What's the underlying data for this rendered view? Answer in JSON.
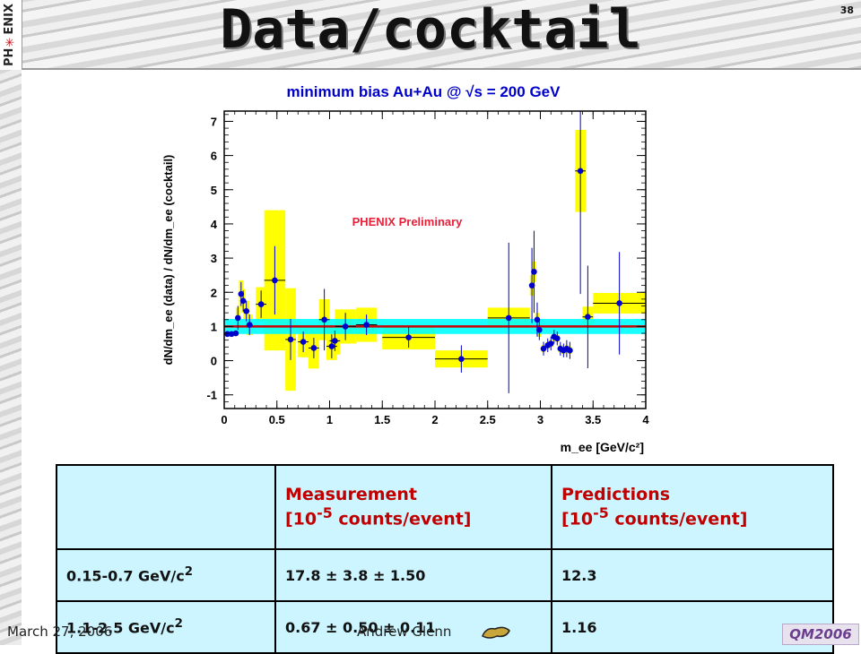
{
  "slide": {
    "title": "Data/cocktail",
    "number": "38",
    "footer_date": "March 27, 2006",
    "footer_author": "Andrew Glenn",
    "logo_main": "PH",
    "logo_accent": "✳",
    "logo_tail": "ENIX",
    "conference_logo": "QM2006",
    "colors": {
      "title": "#111111",
      "table_bg": "#ccf5ff",
      "table_header_text": "#c00000"
    }
  },
  "chart_data": {
    "type": "scatter",
    "title": "minimum bias Au+Au @ √s = 200 GeV",
    "xlabel": "m_ee [GeV/c²]",
    "ylabel": "dN/dm_ee (data) / dN/dm_ee (cocktail)",
    "annotation": "PHENIX Preliminary",
    "xlim": [
      0,
      4
    ],
    "ylim": [
      -1.4,
      7.3
    ],
    "xticks": [
      "0",
      "0.5",
      "1",
      "1.5",
      "2",
      "2.5",
      "3",
      "3.5",
      "4"
    ],
    "yticks": [
      "-1",
      "0",
      "1",
      "2",
      "3",
      "4",
      "5",
      "6",
      "7"
    ],
    "reference_line": 1.0,
    "systematic_band": [
      0.78,
      1.22
    ],
    "colors": {
      "points": "#0000cc",
      "systematics": "#ffff00",
      "band": "#00ffff",
      "reference": "#cc0000",
      "annotation": "#e8203a",
      "title": "#0000cc"
    },
    "points": [
      {
        "x": 0.03,
        "y": 0.78,
        "xe": 0.02,
        "ey": 0.05,
        "sy": 0.06
      },
      {
        "x": 0.07,
        "y": 0.78,
        "xe": 0.02,
        "ey": 0.05,
        "sy": 0.06
      },
      {
        "x": 0.11,
        "y": 0.8,
        "xe": 0.02,
        "ey": 0.07,
        "sy": 0.08
      },
      {
        "x": 0.13,
        "y": 1.25,
        "xe": 0.02,
        "ey": 0.35,
        "sy": 0.3
      },
      {
        "x": 0.16,
        "y": 1.95,
        "xe": 0.02,
        "ey": 0.35,
        "sy": 0.4
      },
      {
        "x": 0.18,
        "y": 1.75,
        "xe": 0.02,
        "ey": 0.3,
        "sy": 0.35
      },
      {
        "x": 0.21,
        "y": 1.45,
        "xe": 0.03,
        "ey": 0.3,
        "sy": 0.3
      },
      {
        "x": 0.24,
        "y": 1.05,
        "xe": 0.03,
        "ey": 0.3,
        "sy": 0.3
      },
      {
        "x": 0.35,
        "y": 1.65,
        "xe": 0.05,
        "ey": 0.4,
        "sy": 0.5
      },
      {
        "x": 0.48,
        "y": 2.35,
        "xe": 0.1,
        "ey": 1.0,
        "sy": 2.05
      },
      {
        "x": 0.63,
        "y": 0.62,
        "xe": 0.05,
        "ey": 0.6,
        "sy": 1.5
      },
      {
        "x": 0.75,
        "y": 0.55,
        "xe": 0.05,
        "ey": 0.3,
        "sy": 0.45
      },
      {
        "x": 0.85,
        "y": 0.37,
        "xe": 0.05,
        "ey": 0.3,
        "sy": 0.6
      },
      {
        "x": 0.95,
        "y": 1.2,
        "xe": 0.05,
        "ey": 0.9,
        "sy": 0.6
      },
      {
        "x": 1.02,
        "y": 0.42,
        "xe": 0.05,
        "ey": 0.35,
        "sy": 0.4
      },
      {
        "x": 1.05,
        "y": 0.58,
        "xe": 0.05,
        "ey": 0.3,
        "sy": 0.4
      },
      {
        "x": 1.15,
        "y": 1.0,
        "xe": 0.1,
        "ey": 0.4,
        "sy": 0.5
      },
      {
        "x": 1.35,
        "y": 1.05,
        "xe": 0.1,
        "ey": 0.3,
        "sy": 0.5
      },
      {
        "x": 1.75,
        "y": 0.68,
        "xe": 0.25,
        "ey": 0.3,
        "sy": 0.35
      },
      {
        "x": 2.25,
        "y": 0.05,
        "xe": 0.25,
        "ey": 0.4,
        "sy": 0.25
      },
      {
        "x": 2.7,
        "y": 1.25,
        "xe": 0.2,
        "ey": 2.2,
        "sy": 0.3
      },
      {
        "x": 2.92,
        "y": 2.2,
        "xe": 0.02,
        "ey": 1.1,
        "sy": 0.3
      },
      {
        "x": 2.94,
        "y": 2.6,
        "xe": 0.02,
        "ey": 1.2,
        "sy": 0.3
      },
      {
        "x": 2.97,
        "y": 1.2,
        "xe": 0.02,
        "ey": 0.5,
        "sy": 0.2
      },
      {
        "x": 2.99,
        "y": 0.9,
        "xe": 0.02,
        "ey": 0.3,
        "sy": 0.2
      },
      {
        "x": 3.03,
        "y": 0.35,
        "xe": 0.02,
        "ey": 0.2,
        "sy": 0.1
      },
      {
        "x": 3.07,
        "y": 0.45,
        "xe": 0.02,
        "ey": 0.2,
        "sy": 0.1
      },
      {
        "x": 3.1,
        "y": 0.5,
        "xe": 0.02,
        "ey": 0.2,
        "sy": 0.1
      },
      {
        "x": 3.13,
        "y": 0.7,
        "xe": 0.02,
        "ey": 0.2,
        "sy": 0.1
      },
      {
        "x": 3.16,
        "y": 0.65,
        "xe": 0.02,
        "ey": 0.2,
        "sy": 0.1
      },
      {
        "x": 3.19,
        "y": 0.35,
        "xe": 0.02,
        "ey": 0.2,
        "sy": 0.1
      },
      {
        "x": 3.22,
        "y": 0.3,
        "xe": 0.02,
        "ey": 0.2,
        "sy": 0.1
      },
      {
        "x": 3.25,
        "y": 0.35,
        "xe": 0.02,
        "ey": 0.25,
        "sy": 0.1
      },
      {
        "x": 3.28,
        "y": 0.3,
        "xe": 0.02,
        "ey": 0.25,
        "sy": 0.1
      },
      {
        "x": 3.38,
        "y": 5.55,
        "xe": 0.05,
        "ey": 3.6,
        "sy": 1.2
      },
      {
        "x": 3.45,
        "y": 1.28,
        "xe": 0.05,
        "ey": 1.5,
        "sy": 0.3
      },
      {
        "x": 3.75,
        "y": 1.68,
        "xe": 0.25,
        "ey": 1.5,
        "sy": 0.3
      }
    ]
  },
  "table": {
    "header_measurement_1": "Measurement",
    "header_measurement_2": "[10",
    "header_measurement_exp": "-5",
    "header_measurement_3": " counts/event]",
    "header_predictions_1": "Predictions",
    "header_predictions_2": "[10",
    "header_predictions_exp": "-5",
    "header_predictions_3": " counts/event]",
    "rows": [
      {
        "range": "0.15-0.7 GeV/c",
        "sup": "2",
        "measurement": "17.8 ± 3.8 ± 1.50",
        "prediction": "12.3"
      },
      {
        "range": "1.1-2.5 GeV/c",
        "sup": "2",
        "measurement": "0.67 ± 0.50 ± 0.11",
        "prediction": "1.16"
      }
    ]
  }
}
